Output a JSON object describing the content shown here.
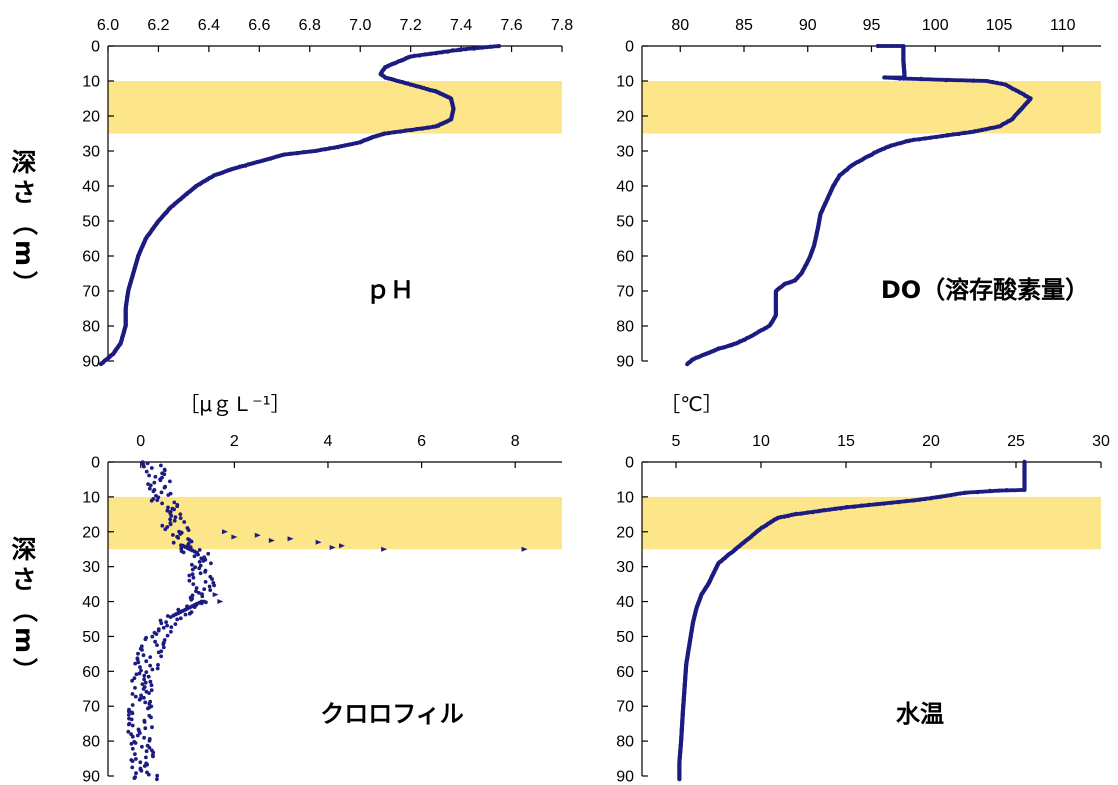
{
  "figure": {
    "ylabel_chars": [
      "深",
      "さ",
      "（",
      "m",
      "）"
    ],
    "colors": {
      "highlight": "#fde68a",
      "series": "#1c1c80",
      "axis": "#000000"
    }
  },
  "chart_data": [
    {
      "type": "scatter",
      "panel": "top-left",
      "title": "ｐＨ",
      "xlabel": "",
      "ylabel": "深さ（m）",
      "x_axis_position": "top",
      "xlim": [
        6.0,
        7.8
      ],
      "x_ticks": [
        6.0,
        6.2,
        6.4,
        6.6,
        6.8,
        7.0,
        7.2,
        7.4,
        7.6,
        7.8
      ],
      "x_tick_labels": [
        "6.0",
        "6.2",
        "6.4",
        "6.6",
        "6.8",
        "7.0",
        "7.2",
        "7.4",
        "7.6",
        "7.8"
      ],
      "ylim": [
        0,
        90
      ],
      "y_inverted": true,
      "y_ticks": [
        0,
        10,
        20,
        30,
        40,
        50,
        60,
        70,
        80,
        90
      ],
      "highlight_band_depth": [
        10,
        25
      ],
      "series": [
        {
          "profile": [
            [
              7.55,
              0
            ],
            [
              7.4,
              1
            ],
            [
              7.2,
              3
            ],
            [
              7.1,
              6
            ],
            [
              7.08,
              8
            ],
            [
              7.1,
              9
            ],
            [
              7.2,
              11
            ],
            [
              7.3,
              13
            ],
            [
              7.36,
              15
            ],
            [
              7.37,
              18
            ],
            [
              7.36,
              21
            ],
            [
              7.3,
              23
            ],
            [
              7.2,
              24
            ],
            [
              7.1,
              25
            ],
            [
              7.05,
              26
            ],
            [
              7.0,
              27.5
            ],
            [
              6.9,
              29
            ],
            [
              6.82,
              30
            ],
            [
              6.7,
              31
            ],
            [
              6.6,
              33
            ],
            [
              6.5,
              35
            ],
            [
              6.42,
              37
            ],
            [
              6.35,
              40
            ],
            [
              6.3,
              43
            ],
            [
              6.25,
              46
            ],
            [
              6.2,
              50
            ],
            [
              6.15,
              55
            ],
            [
              6.12,
              60
            ],
            [
              6.1,
              65
            ],
            [
              6.08,
              70
            ],
            [
              6.07,
              75
            ],
            [
              6.07,
              80
            ],
            [
              6.05,
              85
            ],
            [
              6.02,
              88
            ],
            [
              5.97,
              91
            ]
          ]
        }
      ]
    },
    {
      "type": "scatter",
      "panel": "top-right",
      "title": "DO（溶存酸素量）",
      "xlabel": "",
      "x_axis_position": "top",
      "xlim": [
        77,
        113
      ],
      "x_ticks": [
        80,
        85,
        90,
        95,
        100,
        105,
        110
      ],
      "x_tick_labels": [
        "80",
        "85",
        "90",
        "95",
        "100",
        "105",
        "110"
      ],
      "ylim": [
        0,
        90
      ],
      "y_inverted": true,
      "y_ticks": [
        0,
        10,
        20,
        30,
        40,
        50,
        60,
        70,
        80,
        90
      ],
      "highlight_band_depth": [
        10,
        25
      ],
      "series": [
        {
          "profile": [
            [
              95.5,
              0
            ],
            [
              97.5,
              0
            ],
            [
              97.5,
              4
            ],
            [
              97.6,
              9
            ],
            [
              96.0,
              9
            ],
            [
              97.5,
              9.3
            ],
            [
              101,
              9.7
            ],
            [
              104,
              10
            ],
            [
              105.5,
              11
            ],
            [
              106.5,
              13
            ],
            [
              107.5,
              15
            ],
            [
              107,
              17
            ],
            [
              106.5,
              19
            ],
            [
              106,
              21
            ],
            [
              105,
              23
            ],
            [
              103,
              24.5
            ],
            [
              101,
              25.5
            ],
            [
              98,
              27
            ],
            [
              96.5,
              28.5
            ],
            [
              95.5,
              30
            ],
            [
              94.5,
              32
            ],
            [
              93.5,
              34
            ],
            [
              92.5,
              37
            ],
            [
              92,
              40
            ],
            [
              91.5,
              44
            ],
            [
              91,
              48
            ],
            [
              90.8,
              52
            ],
            [
              90.5,
              57
            ],
            [
              90.2,
              60
            ],
            [
              89.8,
              63
            ],
            [
              89.5,
              65
            ],
            [
              89,
              67
            ],
            [
              88.2,
              68
            ],
            [
              87.5,
              70
            ],
            [
              87.5,
              74
            ],
            [
              87.5,
              77
            ],
            [
              87,
              80
            ],
            [
              86,
              82
            ],
            [
              85,
              84
            ],
            [
              84,
              85.5
            ],
            [
              83,
              86.5
            ],
            [
              82,
              88
            ],
            [
              81,
              89.5
            ],
            [
              80.5,
              91
            ]
          ]
        }
      ]
    },
    {
      "type": "scatter",
      "panel": "bottom-left",
      "title": "クロロフィル",
      "xlabel": "［μｇＬ⁻¹］",
      "ylabel": "深さ（m）",
      "x_axis_position": "top",
      "xlim": [
        -0.7,
        9.0
      ],
      "x_ticks": [
        0,
        2,
        4,
        6,
        8
      ],
      "x_tick_labels": [
        "0",
        "2",
        "4",
        "6",
        "8"
      ],
      "ylim": [
        0,
        90
      ],
      "y_inverted": true,
      "y_ticks": [
        0,
        10,
        20,
        30,
        40,
        50,
        60,
        70,
        80,
        90
      ],
      "highlight_band_depth": [
        10,
        25
      ],
      "series": [
        {
          "profile": [
            [
              0.2,
              0
            ],
            [
              0.3,
              3
            ],
            [
              0.4,
              6
            ],
            [
              0.5,
              9
            ],
            [
              0.5,
              12
            ],
            [
              0.6,
              15
            ],
            [
              0.7,
              18
            ],
            [
              0.8,
              20
            ],
            [
              1.0,
              22
            ],
            [
              0.9,
              24
            ],
            [
              1.2,
              26
            ],
            [
              1.3,
              28
            ],
            [
              1.2,
              31
            ],
            [
              1.3,
              34
            ],
            [
              1.4,
              37
            ],
            [
              1.3,
              40
            ],
            [
              1.0,
              42
            ],
            [
              0.7,
              44
            ],
            [
              0.5,
              47
            ],
            [
              0.3,
              50
            ],
            [
              0.2,
              55
            ],
            [
              0.1,
              60
            ],
            [
              0.0,
              65
            ],
            [
              0.0,
              70
            ],
            [
              0.0,
              75
            ],
            [
              0.0,
              80
            ],
            [
              0.0,
              85
            ],
            [
              0.1,
              91
            ]
          ],
          "outliers": [
            [
              1.8,
              20
            ],
            [
              2.5,
              21
            ],
            [
              3.2,
              22
            ],
            [
              3.8,
              23
            ],
            [
              4.3,
              24
            ],
            [
              4.1,
              24.5
            ],
            [
              5.2,
              25
            ],
            [
              8.2,
              25
            ],
            [
              2.0,
              21.5
            ],
            [
              2.8,
              22.5
            ],
            [
              1.6,
              38
            ],
            [
              1.7,
              40
            ]
          ]
        }
      ]
    },
    {
      "type": "scatter",
      "panel": "bottom-right",
      "title": "水温",
      "xlabel": "［℃］",
      "x_axis_position": "top",
      "xlim": [
        3,
        30
      ],
      "x_ticks": [
        5,
        10,
        15,
        20,
        25,
        30
      ],
      "x_tick_labels": [
        "5",
        "10",
        "15",
        "20",
        "25",
        "30"
      ],
      "ylim": [
        0,
        90
      ],
      "y_inverted": true,
      "y_ticks": [
        0,
        10,
        20,
        30,
        40,
        50,
        60,
        70,
        80,
        90
      ],
      "highlight_band_depth": [
        10,
        25
      ],
      "series": [
        {
          "profile": [
            [
              25.5,
              0
            ],
            [
              25.5,
              4
            ],
            [
              25.5,
              8
            ],
            [
              24,
              8.2
            ],
            [
              22,
              8.8
            ],
            [
              20.5,
              10
            ],
            [
              19,
              11
            ],
            [
              17,
              12
            ],
            [
              15,
              13
            ],
            [
              13.5,
              14
            ],
            [
              12,
              15
            ],
            [
              11,
              16
            ],
            [
              10.5,
              17.5
            ],
            [
              10,
              19
            ],
            [
              9.5,
              21
            ],
            [
              9,
              23
            ],
            [
              8.5,
              25
            ],
            [
              8,
              27
            ],
            [
              7.5,
              29
            ],
            [
              7.2,
              32
            ],
            [
              6.9,
              35
            ],
            [
              6.5,
              38
            ],
            [
              6.2,
              42
            ],
            [
              6,
              46
            ],
            [
              5.8,
              52
            ],
            [
              5.6,
              58
            ],
            [
              5.5,
              65
            ],
            [
              5.4,
              72
            ],
            [
              5.3,
              80
            ],
            [
              5.2,
              86
            ],
            [
              5.2,
              91
            ]
          ]
        }
      ]
    }
  ]
}
